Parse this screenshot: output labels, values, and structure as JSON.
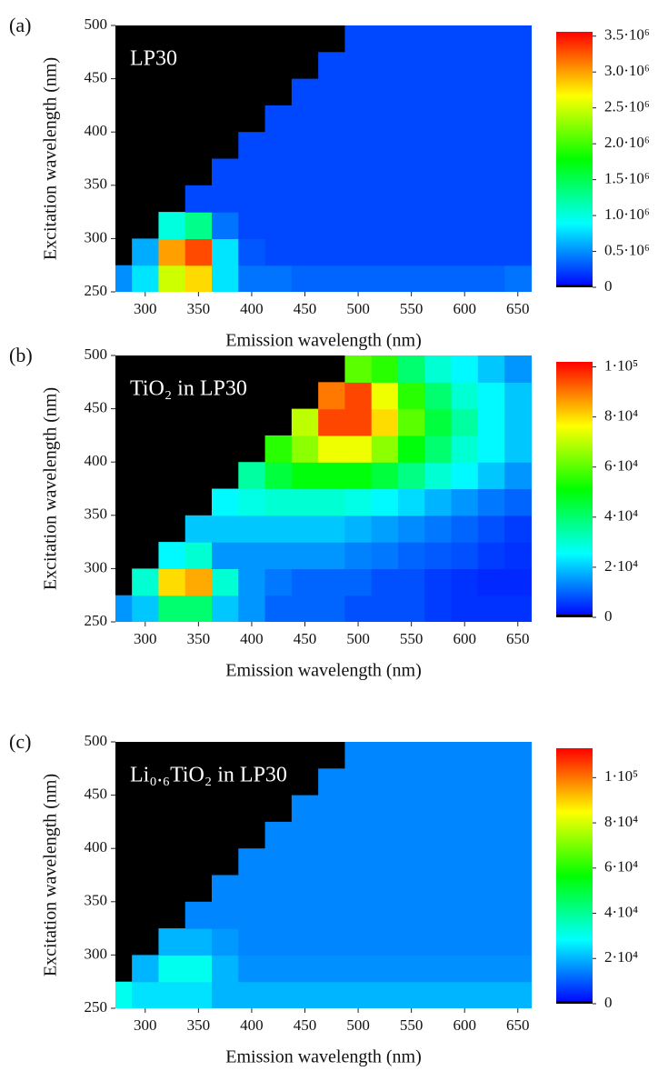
{
  "chart_data": [
    {
      "type": "heatmap",
      "label": "(a)",
      "title": "LP30",
      "xlabel": "Emission wavelength (nm)",
      "ylabel": "Excitation wavelength (nm)",
      "xlim": [
        272,
        663
      ],
      "ylim": [
        250,
        500
      ],
      "xticks": [
        300,
        350,
        400,
        450,
        500,
        550,
        600,
        650
      ],
      "yticks": [
        250,
        300,
        350,
        400,
        450,
        500
      ],
      "x": [
        275,
        300,
        325,
        350,
        375,
        400,
        425,
        450,
        475,
        500,
        525,
        550,
        575,
        600,
        625,
        650
      ],
      "y": [
        262.5,
        287.5,
        312.5,
        337.5,
        362.5,
        387.5,
        412.5,
        437.5,
        462.5,
        487.5
      ],
      "z": [
        [
          500000,
          800000,
          2500000,
          2800000,
          800000,
          400000,
          400000,
          350000,
          350000,
          350000,
          350000,
          350000,
          350000,
          350000,
          350000,
          400000
        ],
        [
          null,
          600000,
          3000000,
          3300000,
          800000,
          300000,
          250000,
          250000,
          250000,
          250000,
          250000,
          250000,
          250000,
          250000,
          250000,
          250000
        ],
        [
          null,
          null,
          1000000,
          1300000,
          400000,
          250000,
          250000,
          250000,
          250000,
          250000,
          250000,
          250000,
          250000,
          250000,
          250000,
          250000
        ],
        [
          null,
          null,
          null,
          250000,
          250000,
          250000,
          250000,
          250000,
          250000,
          250000,
          250000,
          250000,
          250000,
          250000,
          250000,
          250000
        ],
        [
          null,
          null,
          null,
          null,
          250000,
          250000,
          250000,
          250000,
          250000,
          250000,
          250000,
          250000,
          250000,
          250000,
          250000,
          250000
        ],
        [
          null,
          null,
          null,
          null,
          null,
          250000,
          250000,
          250000,
          250000,
          250000,
          250000,
          250000,
          250000,
          250000,
          250000,
          250000
        ],
        [
          null,
          null,
          null,
          null,
          null,
          null,
          250000,
          250000,
          250000,
          250000,
          250000,
          250000,
          250000,
          250000,
          250000,
          250000
        ],
        [
          null,
          null,
          null,
          null,
          null,
          null,
          null,
          250000,
          250000,
          250000,
          250000,
          250000,
          250000,
          250000,
          250000,
          250000
        ],
        [
          null,
          null,
          null,
          null,
          null,
          null,
          null,
          null,
          250000,
          250000,
          250000,
          250000,
          250000,
          250000,
          250000,
          250000
        ],
        [
          null,
          null,
          null,
          null,
          null,
          null,
          null,
          null,
          null,
          250000,
          250000,
          250000,
          250000,
          250000,
          250000,
          250000
        ]
      ],
      "zlim": [
        0,
        3560000
      ],
      "zticks": [
        0,
        {
          "value": 500000,
          "label": "0.5·10⁶"
        },
        {
          "value": 1000000,
          "label": "1.0·10⁶"
        },
        {
          "value": 1500000,
          "label": "1.5·10⁶"
        },
        {
          "value": 2000000,
          "label": "2.0·10⁶"
        },
        {
          "value": 2500000,
          "label": "2.5·10⁶"
        },
        {
          "value": 3000000,
          "label": "3.0·10⁶"
        },
        {
          "value": 3500000,
          "label": "3.5·10⁶"
        }
      ],
      "colormap": [
        "#0000ff",
        "#00ffff",
        "#00ff00",
        "#ffff00",
        "#ff0000"
      ],
      "nodata_color": "#000000"
    },
    {
      "type": "heatmap",
      "label": "(b)",
      "title": "TiO₂ in LP30",
      "xlabel": "Emission wavelength (nm)",
      "ylabel": "Excitation wavelength (nm)",
      "xlim": [
        272,
        663
      ],
      "ylim": [
        250,
        500
      ],
      "xticks": [
        300,
        350,
        400,
        450,
        500,
        550,
        600,
        650
      ],
      "yticks": [
        250,
        300,
        350,
        400,
        450,
        500
      ],
      "x": [
        275,
        300,
        325,
        350,
        375,
        400,
        425,
        450,
        475,
        500,
        525,
        550,
        575,
        600,
        625,
        650
      ],
      "y": [
        262.5,
        287.5,
        312.5,
        337.5,
        362.5,
        387.5,
        412.5,
        437.5,
        462.5,
        487.5
      ],
      "z": [
        [
          15000,
          20000,
          40000,
          40000,
          20000,
          15000,
          10000,
          10000,
          10000,
          8000,
          8000,
          8000,
          6000,
          5000,
          5000,
          5000
        ],
        [
          null,
          30000,
          80000,
          85000,
          30000,
          15000,
          12000,
          10000,
          10000,
          10000,
          8000,
          8000,
          6000,
          5000,
          4000,
          4000
        ],
        [
          null,
          null,
          25000,
          30000,
          15000,
          15000,
          15000,
          15000,
          15000,
          13000,
          12000,
          10000,
          9000,
          8000,
          6000,
          5000
        ],
        [
          null,
          null,
          null,
          20000,
          20000,
          20000,
          20000,
          20000,
          20000,
          18000,
          16000,
          14000,
          12000,
          10000,
          8000,
          6000
        ],
        [
          null,
          null,
          null,
          null,
          25000,
          28000,
          30000,
          30000,
          30000,
          28000,
          25000,
          22000,
          18000,
          15000,
          12000,
          10000
        ],
        [
          null,
          null,
          null,
          null,
          null,
          35000,
          45000,
          50000,
          50000,
          50000,
          45000,
          38000,
          30000,
          25000,
          20000,
          15000
        ],
        [
          null,
          null,
          null,
          null,
          null,
          null,
          55000,
          65000,
          75000,
          75000,
          65000,
          50000,
          40000,
          30000,
          25000,
          20000
        ],
        [
          null,
          null,
          null,
          null,
          null,
          null,
          null,
          70000,
          95000,
          95000,
          80000,
          60000,
          45000,
          35000,
          25000,
          20000
        ],
        [
          null,
          null,
          null,
          null,
          null,
          null,
          null,
          null,
          90000,
          95000,
          75000,
          55000,
          40000,
          30000,
          25000,
          20000
        ],
        [
          null,
          null,
          null,
          null,
          null,
          null,
          null,
          null,
          null,
          60000,
          55000,
          40000,
          30000,
          25000,
          20000,
          15000
        ]
      ],
      "zlim": [
        0,
        102000
      ],
      "zticks": [
        0,
        {
          "value": 20000,
          "label": "2·10⁴"
        },
        {
          "value": 40000,
          "label": "4·10⁴"
        },
        {
          "value": 60000,
          "label": "6·10⁴"
        },
        {
          "value": 80000,
          "label": "8·10⁴"
        },
        {
          "value": 100000,
          "label": "1·10⁵"
        }
      ],
      "colormap": [
        "#0000ff",
        "#00ffff",
        "#00ff00",
        "#ffff00",
        "#ff0000"
      ],
      "nodata_color": "#000000"
    },
    {
      "type": "heatmap",
      "label": "(c)",
      "title": "Li₀.₆TiO₂ in LP30",
      "xlabel": "Emission wavelength (nm)",
      "ylabel": "Excitation wavelength (nm)",
      "xlim": [
        272,
        663
      ],
      "ylim": [
        250,
        500
      ],
      "xticks": [
        300,
        350,
        400,
        450,
        500,
        550,
        600,
        650
      ],
      "yticks": [
        250,
        300,
        350,
        400,
        450,
        500
      ],
      "x": [
        275,
        300,
        325,
        350,
        375,
        400,
        425,
        450,
        475,
        500,
        525,
        550,
        575,
        600,
        625,
        650
      ],
      "y": [
        262.5,
        287.5,
        312.5,
        337.5,
        362.5,
        387.5,
        412.5,
        437.5,
        462.5,
        487.5
      ],
      "z": [
        [
          30000,
          25000,
          25000,
          25000,
          20000,
          20000,
          20000,
          20000,
          20000,
          20000,
          20000,
          20000,
          20000,
          20000,
          20000,
          20000
        ],
        [
          null,
          20000,
          30000,
          30000,
          20000,
          16000,
          16000,
          16000,
          16000,
          16000,
          16000,
          16000,
          16000,
          16000,
          16000,
          16000
        ],
        [
          null,
          null,
          20000,
          20000,
          17000,
          15000,
          15000,
          15000,
          15000,
          15000,
          15000,
          15000,
          15000,
          15000,
          15000,
          15000
        ],
        [
          null,
          null,
          null,
          15000,
          15000,
          15000,
          15000,
          15000,
          15000,
          15000,
          15000,
          15000,
          15000,
          15000,
          15000,
          15000
        ],
        [
          null,
          null,
          null,
          null,
          15000,
          15000,
          15000,
          15000,
          15000,
          15000,
          15000,
          15000,
          15000,
          15000,
          15000,
          15000
        ],
        [
          null,
          null,
          null,
          null,
          null,
          15000,
          15000,
          15000,
          15000,
          15000,
          15000,
          15000,
          15000,
          15000,
          15000,
          15000
        ],
        [
          null,
          null,
          null,
          null,
          null,
          null,
          15000,
          15000,
          15000,
          15000,
          15000,
          15000,
          15000,
          15000,
          15000,
          15000
        ],
        [
          null,
          null,
          null,
          null,
          null,
          null,
          null,
          15000,
          15000,
          15000,
          15000,
          15000,
          15000,
          15000,
          15000,
          15000
        ],
        [
          null,
          null,
          null,
          null,
          null,
          null,
          null,
          null,
          15000,
          15000,
          15000,
          15000,
          15000,
          15000,
          15000,
          15000
        ],
        [
          null,
          null,
          null,
          null,
          null,
          null,
          null,
          null,
          null,
          15000,
          15000,
          15000,
          15000,
          15000,
          15000,
          15000
        ]
      ],
      "zlim": [
        0,
        113000
      ],
      "zticks": [
        0,
        {
          "value": 20000,
          "label": "2·10⁴"
        },
        {
          "value": 40000,
          "label": "4·10⁴"
        },
        {
          "value": 60000,
          "label": "6·10⁴"
        },
        {
          "value": 80000,
          "label": "8·10⁴"
        },
        {
          "value": 100000,
          "label": "1·10⁵"
        }
      ],
      "colormap": [
        "#0000ff",
        "#00ffff",
        "#00ff00",
        "#ffff00",
        "#ff0000"
      ],
      "nodata_color": "#000000"
    }
  ]
}
